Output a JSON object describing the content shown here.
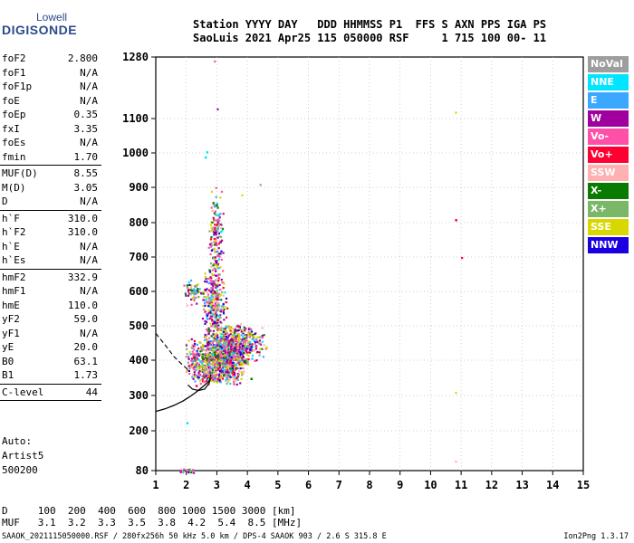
{
  "logo": {
    "line1": "Lowell",
    "line2": "DIGISONDE"
  },
  "header": {
    "line1": "Station YYYY DAY   DDD HHMMSS P1  FFS S AXN PPS IGA PS",
    "line2": "SaoLuis 2021 Apr25 115 050000 RSF     1 715 100 00- 11"
  },
  "params": [
    {
      "name": "foF2",
      "value": "2.800"
    },
    {
      "name": "foF1",
      "value": "N/A"
    },
    {
      "name": "foF1p",
      "value": "N/A"
    },
    {
      "name": "foE",
      "value": "N/A"
    },
    {
      "name": "foEp",
      "value": "0.35"
    },
    {
      "name": "fxI",
      "value": "3.35"
    },
    {
      "name": "foEs",
      "value": "N/A"
    },
    {
      "name": "fmin",
      "value": "1.70",
      "sep": true
    },
    {
      "name": "MUF(D)",
      "value": "8.55"
    },
    {
      "name": "M(D)",
      "value": "3.05"
    },
    {
      "name": "D",
      "value": "N/A",
      "sep": true
    },
    {
      "name": "h`F",
      "value": "310.0"
    },
    {
      "name": "h`F2",
      "value": "310.0"
    },
    {
      "name": "h`E",
      "value": "N/A"
    },
    {
      "name": "h`Es",
      "value": "N/A",
      "sep": true
    },
    {
      "name": "hmF2",
      "value": "332.9"
    },
    {
      "name": "hmF1",
      "value": "N/A"
    },
    {
      "name": "hmE",
      "value": "110.0"
    },
    {
      "name": "yF2",
      "value": "59.0"
    },
    {
      "name": "yF1",
      "value": "N/A"
    },
    {
      "name": "yE",
      "value": "20.0"
    },
    {
      "name": "B0",
      "value": "63.1"
    },
    {
      "name": "B1",
      "value": "1.73",
      "sep": true
    },
    {
      "name": "C-level",
      "value": "44",
      "sep": true
    }
  ],
  "auto": {
    "line1": "Auto:",
    "line2": "Artist5",
    "line3": "500200"
  },
  "legend": [
    {
      "label": "NoVal",
      "color": "#9e9e9e"
    },
    {
      "label": "NNE",
      "color": "#00e5ff"
    },
    {
      "label": "E",
      "color": "#3aa8ff"
    },
    {
      "label": "W",
      "color": "#a0009e"
    },
    {
      "label": "Vo-",
      "color": "#ff4fa8"
    },
    {
      "label": "Vo+",
      "color": "#ff0033"
    },
    {
      "label": "SSW",
      "color": "#ffb0b0"
    },
    {
      "label": "X-",
      "color": "#0a7a00"
    },
    {
      "label": "X+",
      "color": "#7ab868"
    },
    {
      "label": "SSE",
      "color": "#d8d800"
    },
    {
      "label": "NNW",
      "color": "#1a00e0"
    }
  ],
  "bottom": {
    "line1": "D     100  200  400  600  800 1000 1500 3000 [km]",
    "line2": "MUF   3.1  3.2  3.3  3.5  3.8  4.2  5.4  8.5 [MHz]"
  },
  "footer": {
    "left": "SAAOK_2021115050000.RSF / 280fx256h 50 kHz 5.0 km / DPS-4 SAAOK 903 / 2.6 S 315.8 E",
    "right": "Ion2Png 1.3.17"
  },
  "chart_data": {
    "type": "scatter",
    "title": "",
    "xlabel": "",
    "ylabel": "",
    "xlim": [
      1,
      15
    ],
    "ylim": [
      80,
      1280
    ],
    "y_scale": "ionogram virtual height",
    "x_ticks": [
      1,
      2,
      3,
      4,
      5,
      6,
      7,
      8,
      9,
      10,
      11,
      12,
      13,
      14,
      15
    ],
    "y_ticks": [
      80,
      200,
      300,
      400,
      500,
      600,
      700,
      800,
      900,
      1000,
      1100,
      1280
    ],
    "grid": "dotted",
    "legend_position": "right-outside",
    "series": [
      {
        "name": "X+",
        "points": [
          [
            2.0,
            615
          ],
          [
            2.15,
            600
          ],
          [
            2.3,
            620
          ],
          [
            2.1,
            595
          ]
        ]
      },
      {
        "name": "SSE",
        "points": [
          [
            3.4,
            500
          ],
          [
            3.7,
            470
          ],
          [
            4.0,
            480
          ],
          [
            4.3,
            470
          ],
          [
            4.6,
            440
          ],
          [
            2.4,
            455
          ],
          [
            2.6,
            470
          ],
          [
            3.0,
            440
          ]
        ]
      },
      {
        "name": "Vo-",
        "points": [
          [
            2.2,
            380
          ],
          [
            2.5,
            400
          ],
          [
            2.8,
            360
          ],
          [
            3.1,
            420
          ],
          [
            3.4,
            390
          ],
          [
            2.9,
            560
          ],
          [
            3.0,
            650
          ]
        ]
      },
      {
        "name": "W",
        "points": [
          [
            2.7,
            480
          ],
          [
            3.0,
            520
          ],
          [
            3.2,
            430
          ],
          [
            2.9,
            600
          ],
          [
            3.3,
            400
          ]
        ]
      },
      {
        "name": "NNE",
        "points": [
          [
            2.6,
            990
          ],
          [
            2.65,
            1005
          ],
          [
            2.0,
            225
          ]
        ]
      },
      {
        "name": "Vo+",
        "points": [
          [
            3.0,
            350
          ],
          [
            3.5,
            370
          ],
          [
            2.3,
            330
          ],
          [
            10.8,
            810
          ]
        ]
      },
      {
        "name": "X-",
        "points": [
          [
            3.6,
            380
          ],
          [
            3.9,
            400
          ],
          [
            4.1,
            350
          ],
          [
            3.2,
            360
          ]
        ]
      }
    ]
  }
}
